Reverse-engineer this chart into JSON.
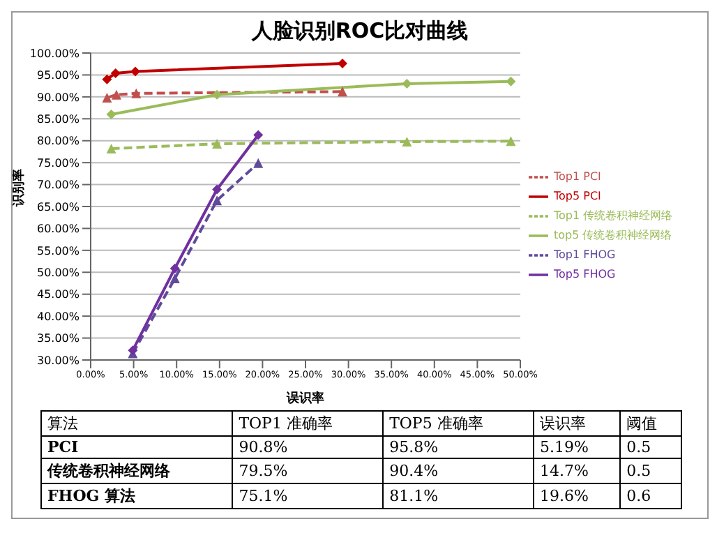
{
  "chart_data": {
    "type": "line",
    "title": "人脸识别ROC比对曲线",
    "xlabel": "误识率",
    "ylabel": "识别率",
    "xlim": [
      0,
      50
    ],
    "ylim": [
      30,
      100
    ],
    "xticks": [
      {
        "value": 0,
        "label": "0.00%"
      },
      {
        "value": 5,
        "label": "5.00%"
      },
      {
        "value": 10,
        "label": "10.00%"
      },
      {
        "value": 15,
        "label": "15.00%"
      },
      {
        "value": 20,
        "label": "20.00%"
      },
      {
        "value": 25,
        "label": "25.00%"
      },
      {
        "value": 30,
        "label": "30.00%"
      },
      {
        "value": 35,
        "label": "35.00%"
      },
      {
        "value": 40,
        "label": "40.00%"
      },
      {
        "value": 45,
        "label": "45.00%"
      },
      {
        "value": 50,
        "label": "50.00%"
      }
    ],
    "yticks": [
      {
        "value": 30,
        "label": "30.00%"
      },
      {
        "value": 35,
        "label": "35.00%"
      },
      {
        "value": 40,
        "label": "40.00%"
      },
      {
        "value": 45,
        "label": "45.00%"
      },
      {
        "value": 50,
        "label": "50.00%"
      },
      {
        "value": 55,
        "label": "55.00%"
      },
      {
        "value": 60,
        "label": "60.00%"
      },
      {
        "value": 65,
        "label": "65.00%"
      },
      {
        "value": 70,
        "label": "70.00%"
      },
      {
        "value": 75,
        "label": "75.00%"
      },
      {
        "value": 80,
        "label": "80.00%"
      },
      {
        "value": 85,
        "label": "85.00%"
      },
      {
        "value": 90,
        "label": "90.00%"
      },
      {
        "value": 95,
        "label": "95.00%"
      },
      {
        "value": 100,
        "label": "100.00%"
      }
    ],
    "grid": "y",
    "legend": "right",
    "series": [
      {
        "name": "Top1 PCI",
        "color": "#c0504d",
        "marker": "triangle",
        "line_style": "dashed",
        "x": [
          1.9,
          3.0,
          5.3,
          29.3
        ],
        "values": [
          89.8,
          90.5,
          90.8,
          91.2
        ]
      },
      {
        "name": "Top5 PCI",
        "color": "#c00000",
        "marker": "diamond",
        "line_style": "solid",
        "x": [
          1.9,
          2.9,
          5.2,
          29.3
        ],
        "values": [
          94.0,
          95.4,
          95.8,
          97.6
        ]
      },
      {
        "name": "Top1 传统卷积神经网络",
        "color": "#9bbb59",
        "marker": "triangle",
        "line_style": "dashed",
        "x": [
          2.4,
          14.7,
          36.8,
          48.9
        ],
        "values": [
          78.2,
          79.3,
          79.8,
          79.9
        ]
      },
      {
        "name": "top5 传统卷积神经网络",
        "color": "#9bbb59",
        "marker": "diamond",
        "line_style": "solid",
        "x": [
          2.4,
          14.7,
          36.8,
          48.9
        ],
        "values": [
          86.0,
          90.5,
          93.0,
          93.5
        ]
      },
      {
        "name": "Top1 FHOG",
        "color": "#604a9b",
        "marker": "triangle",
        "line_style": "dashed",
        "x": [
          4.9,
          9.8,
          14.7,
          19.5
        ],
        "values": [
          31.5,
          48.6,
          66.4,
          74.9
        ]
      },
      {
        "name": "Top5 FHOG",
        "color": "#7030a0",
        "marker": "diamond",
        "line_style": "solid",
        "x": [
          4.9,
          9.8,
          14.7,
          19.5
        ],
        "values": [
          32.2,
          50.9,
          68.9,
          81.3
        ]
      }
    ],
    "annotations": [
      "算法",
      "TOP1 准确率",
      "TOP5 准确率",
      "误识率",
      "阈值",
      "PCI",
      "90.8%",
      "95.8%",
      "5.19%",
      "0.5",
      "传统卷积神经网络",
      "79.5%",
      "90.4%",
      "14.7%",
      "0.5",
      "FHOG 算法",
      "75.1%",
      "81.1%",
      "19.6%",
      "0.6"
    ]
  }
}
